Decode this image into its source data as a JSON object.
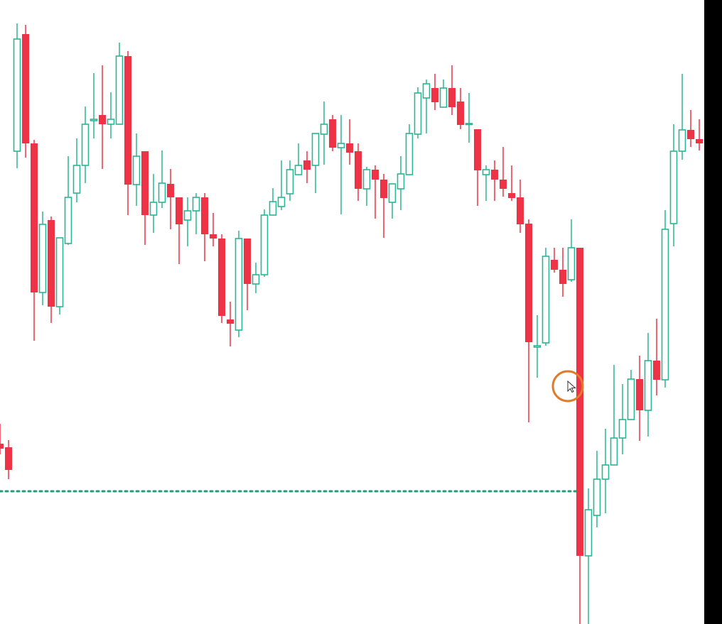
{
  "chart_data": {
    "type": "candlestick",
    "title": "",
    "xlabel": "",
    "ylabel": "",
    "ylim": [
      0,
      88
    ],
    "grid": false,
    "colors": {
      "up": "#2bb594",
      "down": "#ef3346",
      "level": "#1f9e7f",
      "cursor_ring": "#e07b2a"
    },
    "up_style": "hollow",
    "down_style": "filled",
    "ohlc_fields": [
      "open",
      "high",
      "low",
      "close"
    ],
    "candles": [
      [
        25.4,
        28.2,
        23.9,
        24.7
      ],
      [
        24.9,
        25.9,
        20.4,
        21.7
      ],
      [
        66.6,
        84.6,
        64.2,
        82.4
      ],
      [
        83.1,
        84.4,
        65.7,
        67.7
      ],
      [
        67.7,
        68.2,
        39.9,
        46.7
      ],
      [
        46.7,
        58.1,
        44.9,
        56.3
      ],
      [
        56.9,
        57.4,
        42.4,
        44.7
      ],
      [
        44.7,
        54.4,
        43.6,
        54.4
      ],
      [
        53.6,
        65.9,
        53.4,
        60.1
      ],
      [
        60.7,
        68.4,
        59.4,
        64.6
      ],
      [
        64.6,
        72.9,
        62.1,
        70.4
      ],
      [
        70.9,
        77.6,
        68.4,
        71.1
      ],
      [
        71.7,
        78.7,
        64.1,
        70.4
      ],
      [
        70.4,
        74.9,
        68.4,
        71.1
      ],
      [
        70.4,
        81.9,
        70.4,
        80.0
      ],
      [
        80.0,
        80.7,
        57.6,
        61.9
      ],
      [
        61.9,
        69.1,
        58.9,
        65.9
      ],
      [
        66.6,
        66.6,
        53.4,
        57.6
      ],
      [
        57.6,
        63.4,
        55.1,
        59.4
      ],
      [
        59.4,
        66.7,
        58.6,
        62.1
      ],
      [
        62.0,
        64.1,
        55.6,
        60.1
      ],
      [
        60.1,
        60.1,
        50.7,
        56.3
      ],
      [
        56.9,
        60.1,
        53.2,
        58.2
      ],
      [
        58.2,
        60.7,
        54.9,
        60.1
      ],
      [
        60.1,
        60.7,
        51.1,
        54.9
      ],
      [
        54.9,
        57.9,
        53.2,
        54.3
      ],
      [
        54.3,
        54.9,
        42.4,
        43.4
      ],
      [
        42.9,
        45.4,
        39.1,
        42.3
      ],
      [
        41.4,
        55.4,
        40.4,
        54.3
      ],
      [
        54.3,
        54.3,
        44.2,
        47.9
      ],
      [
        47.9,
        50.9,
        46.6,
        49.2
      ],
      [
        49.2,
        58.4,
        48.9,
        57.6
      ],
      [
        57.6,
        61.4,
        57.6,
        59.5
      ],
      [
        58.8,
        65.3,
        58.3,
        60.1
      ],
      [
        60.6,
        65.3,
        59.6,
        64.0
      ],
      [
        63.3,
        67.7,
        63.3,
        64.6
      ],
      [
        65.3,
        66.6,
        62.1,
        64.0
      ],
      [
        64.6,
        69.1,
        60.7,
        69.1
      ],
      [
        69.0,
        73.6,
        64.7,
        70.4
      ],
      [
        71.1,
        71.7,
        66.6,
        67.1
      ],
      [
        67.1,
        71.7,
        57.7,
        67.7
      ],
      [
        67.7,
        71.1,
        64.7,
        66.4
      ],
      [
        66.6,
        67.7,
        59.6,
        61.3
      ],
      [
        61.3,
        64.4,
        58.9,
        64.0
      ],
      [
        64.0,
        64.6,
        57.1,
        62.6
      ],
      [
        62.6,
        63.4,
        54.4,
        60.0
      ],
      [
        59.4,
        62.0,
        57.1,
        62.0
      ],
      [
        61.3,
        65.9,
        58.3,
        63.4
      ],
      [
        63.3,
        70.4,
        63.3,
        69.1
      ],
      [
        69.0,
        75.6,
        68.4,
        74.8
      ],
      [
        74.1,
        76.7,
        69.1,
        76.1
      ],
      [
        75.5,
        77.5,
        72.4,
        73.5
      ],
      [
        72.8,
        76.7,
        72.8,
        75.5
      ],
      [
        75.5,
        78.7,
        71.7,
        72.8
      ],
      [
        73.6,
        75.5,
        69.7,
        70.3
      ],
      [
        70.4,
        74.8,
        67.8,
        70.5
      ],
      [
        69.7,
        69.7,
        58.9,
        63.9
      ],
      [
        63.3,
        64.6,
        59.6,
        64.0
      ],
      [
        64.0,
        65.3,
        59.6,
        62.6
      ],
      [
        62.6,
        67.2,
        60.2,
        61.3
      ],
      [
        60.7,
        64.6,
        59.6,
        60.0
      ],
      [
        60.1,
        62.6,
        55.1,
        56.3
      ],
      [
        56.4,
        57.0,
        28.4,
        39.7
      ],
      [
        39.0,
        43.5,
        34.7,
        39.2
      ],
      [
        39.6,
        53.0,
        39.2,
        51.8
      ],
      [
        51.3,
        53.0,
        49.5,
        49.9
      ],
      [
        49.9,
        53.0,
        46.1,
        47.9
      ],
      [
        48.5,
        57.0,
        48.2,
        53.0
      ],
      [
        53.0,
        53.0,
        0,
        9.6
      ],
      [
        9.6,
        19.1,
        0,
        16.1
      ],
      [
        15.3,
        24.4,
        13.6,
        20.4
      ],
      [
        20.4,
        27.5,
        15.6,
        22.4
      ],
      [
        22.4,
        36.5,
        22.4,
        26.2
      ],
      [
        26.2,
        33.8,
        23.9,
        28.8
      ],
      [
        28.8,
        35.8,
        28.8,
        34.5
      ],
      [
        34.5,
        37.8,
        25.8,
        30.1
      ],
      [
        30.1,
        41.0,
        26.4,
        37.1
      ],
      [
        37.1,
        43.0,
        32.2,
        34.4
      ],
      [
        34.4,
        58.3,
        33.3,
        55.6
      ],
      [
        56.4,
        70.4,
        53.2,
        66.6
      ],
      [
        66.6,
        77.5,
        65.4,
        69.6
      ],
      [
        69.6,
        72.4,
        67.2,
        68.3
      ],
      [
        68.3,
        71.1,
        66.7,
        67.7
      ]
    ],
    "horizontal_level": {
      "price": 18.7,
      "style": "dotted",
      "ends_at_candle": 68
    },
    "cursor": {
      "at_candle": 67,
      "price": 33.5,
      "icon": "mouse-pointer-icon"
    }
  }
}
